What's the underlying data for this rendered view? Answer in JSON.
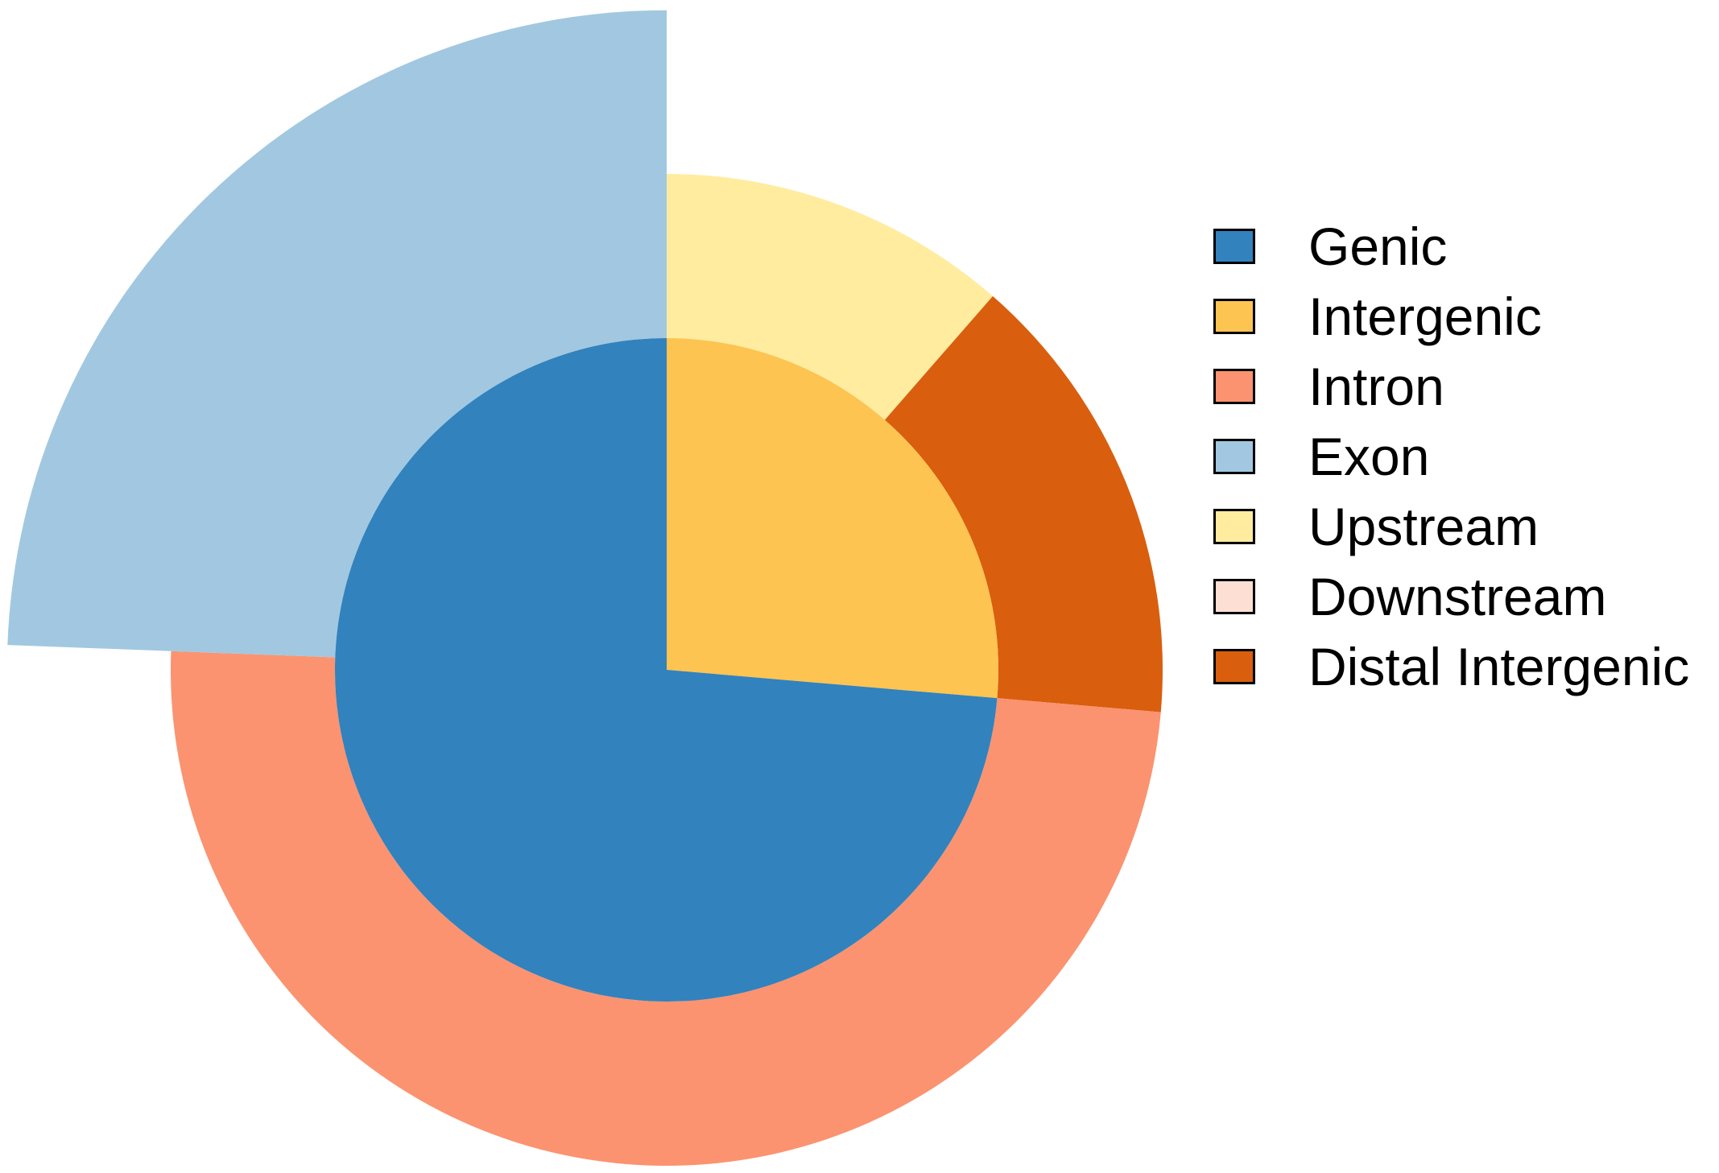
{
  "chart_data": {
    "type": "pie",
    "title": "",
    "legend_position": "right",
    "inner_ring": {
      "slices": [
        {
          "label": "Intergenic",
          "value": 0.2636,
          "color": "#FDC451"
        },
        {
          "label": "Genic",
          "value": 0.7364,
          "color": "#3282BD"
        }
      ]
    },
    "outer_ring": {
      "slices": [
        {
          "label": "Upstream",
          "value": 0.1142,
          "color": "#FFEC9F"
        },
        {
          "label": "Distal Intergenic",
          "value": 0.1494,
          "color": "#D95E0E"
        },
        {
          "label": "Intron",
          "value": 0.4924,
          "color": "#FB9370"
        },
        {
          "label": "Exon",
          "value": 0.244,
          "color": "#A1C8E0",
          "radius_scale": 1.33
        },
        {
          "label": "Downstream",
          "value": 0.0,
          "color": "#FDDFD3"
        }
      ],
      "gap_fraction": 0.0
    },
    "legend": [
      {
        "label": "Genic",
        "color": "#3282BD"
      },
      {
        "label": "Intergenic",
        "color": "#FDC451"
      },
      {
        "label": "Intron",
        "color": "#FB9370"
      },
      {
        "label": "Exon",
        "color": "#A1C8E0"
      },
      {
        "label": "Upstream",
        "color": "#FFEC9F"
      },
      {
        "label": "Downstream",
        "color": "#FDDFD3"
      },
      {
        "label": "Distal Intergenic",
        "color": "#D95E0E"
      }
    ]
  }
}
